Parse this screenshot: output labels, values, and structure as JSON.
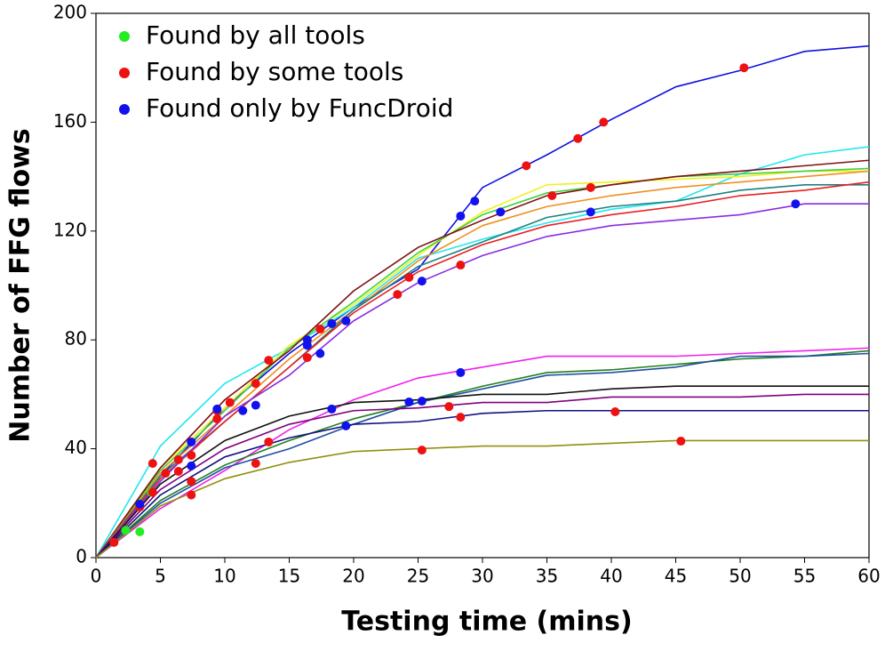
{
  "chart_data": {
    "type": "line",
    "xlabel": "Testing time (mins)",
    "ylabel": "Number of FFG flows",
    "xlim": [
      0,
      60
    ],
    "ylim": [
      0,
      200
    ],
    "xticks": [
      0,
      5,
      10,
      15,
      20,
      25,
      30,
      35,
      40,
      45,
      50,
      55,
      60
    ],
    "yticks": [
      0,
      40,
      80,
      120,
      160,
      200
    ],
    "legend": "upper left",
    "x": [
      0,
      5,
      10,
      15,
      20,
      25,
      30,
      35,
      40,
      45,
      50,
      55,
      60
    ],
    "lines": [
      {
        "color": "#1010e0",
        "values": [
          0,
          30,
          55,
          75,
          92,
          106,
          136,
          148,
          161,
          173,
          179,
          186,
          188
        ]
      },
      {
        "color": "#20e8f0",
        "values": [
          0,
          41,
          64,
          77,
          92,
          110,
          117,
          123,
          128,
          131,
          141,
          148,
          151
        ]
      },
      {
        "color": "#f0f020",
        "values": [
          0,
          33,
          55,
          78,
          93,
          111,
          127,
          137,
          138,
          139,
          140,
          142,
          142
        ]
      },
      {
        "color": "#40d040",
        "values": [
          0,
          32,
          54,
          77,
          94,
          112,
          126,
          134,
          137,
          140,
          141,
          142,
          143
        ]
      },
      {
        "color": "#801010",
        "values": [
          0,
          33,
          58,
          76,
          98,
          114,
          124,
          133,
          137,
          140,
          142,
          144,
          146
        ]
      },
      {
        "color": "#f09020",
        "values": [
          0,
          31,
          52,
          73,
          91,
          109,
          122,
          129,
          133,
          136,
          138,
          140,
          142
        ]
      },
      {
        "color": "#208080",
        "values": [
          0,
          30,
          50,
          70,
          91,
          107,
          116,
          125,
          129,
          131,
          135,
          137,
          137
        ]
      },
      {
        "color": "#e82020",
        "values": [
          0,
          29,
          50,
          70,
          90,
          105,
          115,
          122,
          126,
          129,
          133,
          135,
          138
        ]
      },
      {
        "color": "#8a2be2",
        "values": [
          0,
          28,
          52,
          67,
          87,
          101,
          111,
          118,
          122,
          124,
          126,
          130,
          130
        ]
      },
      {
        "color": "#f020f0",
        "values": [
          0,
          18,
          32,
          47,
          58,
          66,
          70,
          74,
          74,
          74,
          75,
          76,
          77
        ]
      },
      {
        "color": "#208020",
        "values": [
          0,
          21,
          34,
          43,
          51,
          57,
          63,
          68,
          69,
          71,
          73,
          74,
          76
        ]
      },
      {
        "color": "#2050a0",
        "values": [
          0,
          20,
          33,
          40,
          49,
          57,
          62,
          67,
          68,
          70,
          74,
          74,
          75
        ]
      },
      {
        "color": "#101010",
        "values": [
          0,
          27,
          43,
          52,
          57,
          58,
          60,
          60,
          62,
          63,
          63,
          63,
          63
        ]
      },
      {
        "color": "#800080",
        "values": [
          0,
          25,
          40,
          49,
          54,
          55,
          57,
          57,
          59,
          59,
          59,
          60,
          60
        ]
      },
      {
        "color": "#101080",
        "values": [
          0,
          23,
          37,
          44,
          49,
          50,
          53,
          54,
          54,
          54,
          54,
          54,
          54
        ]
      },
      {
        "color": "#909010",
        "values": [
          0,
          19,
          29,
          35,
          39,
          40,
          41,
          41,
          42,
          43,
          43,
          43,
          43
        ]
      }
    ],
    "series": [
      {
        "name": "Found by all tools",
        "color": "#22ee22",
        "x": [
          2.3,
          3.4,
          4.3
        ],
        "values": [
          10,
          9.5,
          24
        ]
      },
      {
        "name": "Found by some tools",
        "color": "#ee1111",
        "x": [
          1.4,
          3.4,
          4.4,
          4.4,
          5.4,
          6.4,
          6.4,
          7.4,
          7.4,
          7.4,
          9.4,
          9.4,
          10.4,
          12.4,
          12.4,
          13.4,
          13.4,
          16.4,
          17.4,
          23.4,
          24.3,
          25.3,
          27.4,
          28.3,
          28.3,
          33.4,
          35.4,
          37.4,
          38.4,
          39.4,
          40.3,
          45.4,
          50.3
        ],
        "values": [
          5.6,
          18.6,
          34.6,
          24,
          31,
          31.7,
          36,
          37.6,
          28,
          23,
          54,
          51,
          57,
          64,
          34.6,
          72.5,
          42.5,
          73.5,
          84,
          96.7,
          103,
          39.5,
          55.5,
          107.5,
          51.6,
          144,
          133,
          154,
          136,
          160,
          53.6,
          42.8,
          180
        ]
      },
      {
        "name": "Found only by FuncDroid",
        "color": "#1111ee",
        "x": [
          3.4,
          7.4,
          7.4,
          9.4,
          11.4,
          12.4,
          16.4,
          16.4,
          17.4,
          18.3,
          18.3,
          19.4,
          19.4,
          24.3,
          25.3,
          25.3,
          28.3,
          28.3,
          29.4,
          31.4,
          38.4,
          54.3
        ],
        "values": [
          19.6,
          42.5,
          33.7,
          54.6,
          54,
          56,
          80,
          78,
          75,
          86,
          54.6,
          87,
          48.4,
          57.2,
          101.6,
          57.5,
          125.5,
          68,
          131,
          127,
          127,
          130
        ]
      }
    ]
  }
}
